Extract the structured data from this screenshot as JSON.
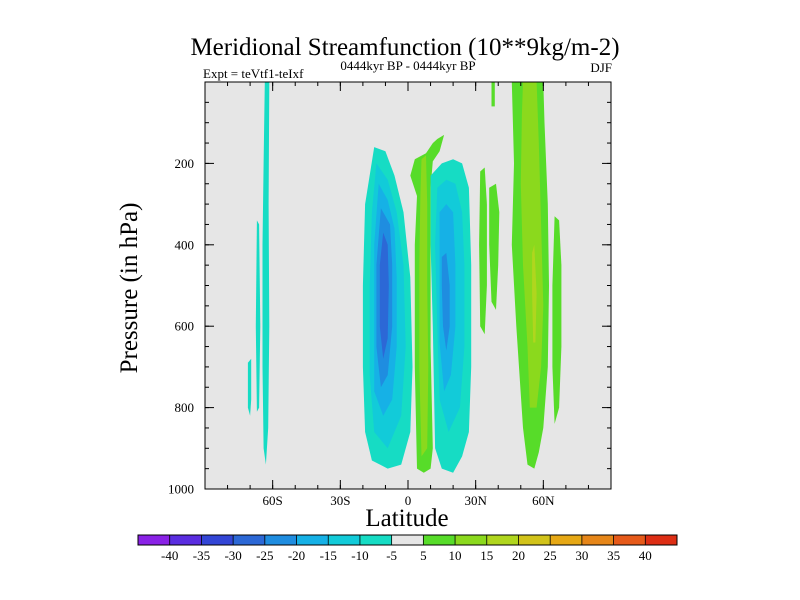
{
  "chart_data": {
    "type": "contour",
    "title": "Meridional Streamfunction (10**9kg/m-2)",
    "subtitle_left": "Expt = teVtf1-teIxf",
    "subtitle_center": "0444kyr BP - 0444kyr BP",
    "subtitle_right": "DJF",
    "xlabel": "Latitude",
    "ylabel": "Pressure (in hPa)",
    "xlim": [
      -90,
      90
    ],
    "ylim": [
      1000,
      0
    ],
    "y_reversed": true,
    "x_ticks": [
      {
        "value": -60,
        "label": "60S"
      },
      {
        "value": -30,
        "label": "30S"
      },
      {
        "value": 0,
        "label": "0"
      },
      {
        "value": 30,
        "label": "30N"
      },
      {
        "value": 60,
        "label": "60N"
      }
    ],
    "y_ticks": [
      {
        "value": 200,
        "label": "200"
      },
      {
        "value": 400,
        "label": "400"
      },
      {
        "value": 600,
        "label": "600"
      },
      {
        "value": 800,
        "label": "800"
      },
      {
        "value": 1000,
        "label": "1000"
      }
    ],
    "background_color": "#e6e6e6",
    "colorbar": {
      "levels": [
        -40,
        -35,
        -30,
        -25,
        -20,
        -15,
        -10,
        -5,
        5,
        10,
        15,
        20,
        25,
        30,
        35,
        40
      ],
      "colors": [
        "#8a22e6",
        "#5a2de0",
        "#3346d6",
        "#2c68d6",
        "#1f8de0",
        "#16b1e6",
        "#12cbd9",
        "#16dcc4",
        "#e6e6e6",
        "#57dc29",
        "#8bd91d",
        "#b0d61e",
        "#d2c31a",
        "#e6a815",
        "#e68619",
        "#e65a1a",
        "#dd2e14"
      ]
    },
    "regions": [
      {
        "name": "sh-polar-cell",
        "color": "#16dcc4",
        "points": [
          [
            -63.5,
            0
          ],
          [
            -61.5,
            0
          ],
          [
            -61.8,
            300
          ],
          [
            -61.5,
            600
          ],
          [
            -62,
            850
          ],
          [
            -63,
            940
          ],
          [
            -64,
            900
          ],
          [
            -64.5,
            700
          ],
          [
            -64.5,
            400
          ],
          [
            -64,
            200
          ]
        ]
      },
      {
        "name": "sh-polar-cell-outer",
        "color": "#16dcc4",
        "points": [
          [
            -67,
            340
          ],
          [
            -66,
            350
          ],
          [
            -65.5,
            600
          ],
          [
            -66,
            800
          ],
          [
            -67,
            810
          ],
          [
            -67.5,
            600
          ]
        ]
      },
      {
        "name": "sh-ferrel-edge",
        "color": "#16dcc4",
        "points": [
          [
            -71,
            690
          ],
          [
            -69.5,
            680
          ],
          [
            -69.5,
            780
          ],
          [
            -70,
            820
          ],
          [
            -71,
            800
          ]
        ]
      },
      {
        "name": "sh-hadley-cell",
        "color": "#16dcc4",
        "points": [
          [
            -15,
            160
          ],
          [
            -10,
            170
          ],
          [
            -6,
            230
          ],
          [
            -2,
            320
          ],
          [
            1,
            480
          ],
          [
            2,
            700
          ],
          [
            1,
            860
          ],
          [
            -3,
            940
          ],
          [
            -9,
            950
          ],
          [
            -16,
            930
          ],
          [
            -19,
            860
          ],
          [
            -20,
            700
          ],
          [
            -20,
            500
          ],
          [
            -19,
            300
          ]
        ]
      },
      {
        "name": "sh-hadley-lvl-10",
        "color": "#12cbd9",
        "points": [
          [
            -14,
            200
          ],
          [
            -9,
            240
          ],
          [
            -5,
            320
          ],
          [
            -2,
            450
          ],
          [
            -1,
            650
          ],
          [
            -3,
            820
          ],
          [
            -9,
            900
          ],
          [
            -15,
            860
          ],
          [
            -17,
            720
          ],
          [
            -17,
            500
          ],
          [
            -16,
            320
          ]
        ]
      },
      {
        "name": "sh-hadley-lvl-15",
        "color": "#16b1e6",
        "points": [
          [
            -13,
            250
          ],
          [
            -9,
            290
          ],
          [
            -6,
            360
          ],
          [
            -5,
            480
          ],
          [
            -5,
            650
          ],
          [
            -7,
            780
          ],
          [
            -11,
            820
          ],
          [
            -15,
            760
          ],
          [
            -15,
            600
          ],
          [
            -15,
            400
          ]
        ]
      },
      {
        "name": "sh-hadley-lvl-20",
        "color": "#1f8de0",
        "points": [
          [
            -12,
            310
          ],
          [
            -8,
            350
          ],
          [
            -7,
            450
          ],
          [
            -7,
            600
          ],
          [
            -9,
            720
          ],
          [
            -12,
            750
          ],
          [
            -14,
            650
          ],
          [
            -14,
            450
          ]
        ]
      },
      {
        "name": "sh-hadley-lvl-25",
        "color": "#2c68d6",
        "points": [
          [
            -11,
            370
          ],
          [
            -9,
            400
          ],
          [
            -8.5,
            500
          ],
          [
            -9,
            630
          ],
          [
            -11,
            680
          ],
          [
            -12.5,
            600
          ],
          [
            -12.5,
            450
          ]
        ]
      },
      {
        "name": "itcz-cell-base",
        "color": "#57dc29",
        "points": [
          [
            3,
            190
          ],
          [
            8,
            175
          ],
          [
            11,
            150
          ],
          [
            13,
            140
          ],
          [
            16,
            130
          ],
          [
            14,
            170
          ],
          [
            11,
            195
          ],
          [
            10,
            260
          ],
          [
            10,
            400
          ],
          [
            10,
            650
          ],
          [
            11,
            900
          ],
          [
            10,
            950
          ],
          [
            7,
            960
          ],
          [
            4,
            950
          ],
          [
            3,
            700
          ],
          [
            3,
            400
          ],
          [
            4,
            280
          ],
          [
            1,
            230
          ]
        ]
      },
      {
        "name": "itcz-cell-core",
        "color": "#8bd91d",
        "points": [
          [
            6,
            190
          ],
          [
            8,
            180
          ],
          [
            8.5,
            300
          ],
          [
            8.5,
            500
          ],
          [
            9,
            700
          ],
          [
            8.5,
            900
          ],
          [
            6,
            920
          ],
          [
            5,
            700
          ],
          [
            5,
            450
          ],
          [
            5.5,
            280
          ]
        ]
      },
      {
        "name": "nh-hadley-cell",
        "color": "#16dcc4",
        "points": [
          [
            10,
            230
          ],
          [
            15,
            200
          ],
          [
            20,
            190
          ],
          [
            24,
            200
          ],
          [
            27,
            260
          ],
          [
            28,
            450
          ],
          [
            28,
            700
          ],
          [
            27,
            860
          ],
          [
            24,
            920
          ],
          [
            20,
            960
          ],
          [
            15,
            950
          ],
          [
            12,
            900
          ],
          [
            11,
            600
          ],
          [
            10,
            400
          ]
        ]
      },
      {
        "name": "nh-hadley-lvl-10",
        "color": "#12cbd9",
        "points": [
          [
            13,
            260
          ],
          [
            17,
            240
          ],
          [
            21,
            250
          ],
          [
            24,
            320
          ],
          [
            25,
            450
          ],
          [
            25,
            650
          ],
          [
            23,
            800
          ],
          [
            18,
            860
          ],
          [
            14,
            780
          ],
          [
            13,
            600
          ],
          [
            12,
            400
          ]
        ]
      },
      {
        "name": "nh-hadley-lvl-15",
        "color": "#16b1e6",
        "points": [
          [
            14,
            320
          ],
          [
            17,
            300
          ],
          [
            20,
            320
          ],
          [
            21,
            450
          ],
          [
            21,
            600
          ],
          [
            19,
            720
          ],
          [
            16,
            760
          ],
          [
            14,
            640
          ],
          [
            14,
            450
          ]
        ]
      },
      {
        "name": "nh-hadley-lvl-20",
        "color": "#1f8de0",
        "points": [
          [
            15,
            430
          ],
          [
            17,
            420
          ],
          [
            18.5,
            500
          ],
          [
            18.5,
            600
          ],
          [
            17,
            660
          ],
          [
            15.5,
            600
          ],
          [
            15,
            500
          ]
        ]
      },
      {
        "name": "nh-ferrel-band-1",
        "color": "#57dc29",
        "points": [
          [
            32,
            220
          ],
          [
            34,
            210
          ],
          [
            35,
            300
          ],
          [
            35,
            500
          ],
          [
            34,
            620
          ],
          [
            32,
            600
          ],
          [
            31.5,
            400
          ]
        ]
      },
      {
        "name": "nh-ferrel-band-2",
        "color": "#57dc29",
        "points": [
          [
            36,
            260
          ],
          [
            39,
            250
          ],
          [
            40.5,
            320
          ],
          [
            40,
            450
          ],
          [
            39,
            560
          ],
          [
            37,
            540
          ],
          [
            36,
            400
          ]
        ]
      },
      {
        "name": "nh-ferrel-band-3",
        "color": "#57dc29",
        "points": [
          [
            37,
            0
          ],
          [
            38.5,
            0
          ],
          [
            38.5,
            60
          ],
          [
            37,
            60
          ]
        ]
      },
      {
        "name": "nh-polar-cell",
        "color": "#57dc29",
        "points": [
          [
            46,
            0
          ],
          [
            60,
            0
          ],
          [
            60.5,
            100
          ],
          [
            62,
            300
          ],
          [
            62.5,
            500
          ],
          [
            62,
            700
          ],
          [
            60,
            850
          ],
          [
            58,
            910
          ],
          [
            56,
            950
          ],
          [
            53,
            940
          ],
          [
            51,
            850
          ],
          [
            48,
            600
          ],
          [
            46,
            400
          ],
          [
            47,
            200
          ]
        ]
      },
      {
        "name": "nh-polar-lvl-10",
        "color": "#8bd91d",
        "points": [
          [
            51,
            0
          ],
          [
            57,
            0
          ],
          [
            58,
            150
          ],
          [
            59,
            350
          ],
          [
            60,
            550
          ],
          [
            59,
            700
          ],
          [
            57,
            800
          ],
          [
            54,
            800
          ],
          [
            53,
            650
          ],
          [
            51,
            450
          ],
          [
            50,
            250
          ],
          [
            50.5,
            80
          ]
        ]
      },
      {
        "name": "nh-polar-core",
        "color": "#b0d61e",
        "points": [
          [
            55,
            420
          ],
          [
            56,
            400
          ],
          [
            57,
            520
          ],
          [
            56.5,
            640
          ],
          [
            55.5,
            640
          ],
          [
            55,
            520
          ]
        ]
      },
      {
        "name": "nh-polar-outer",
        "color": "#57dc29",
        "points": [
          [
            65,
            330
          ],
          [
            67,
            340
          ],
          [
            68,
            450
          ],
          [
            68,
            650
          ],
          [
            67,
            800
          ],
          [
            65,
            840
          ],
          [
            64,
            700
          ],
          [
            64,
            500
          ]
        ]
      }
    ]
  }
}
